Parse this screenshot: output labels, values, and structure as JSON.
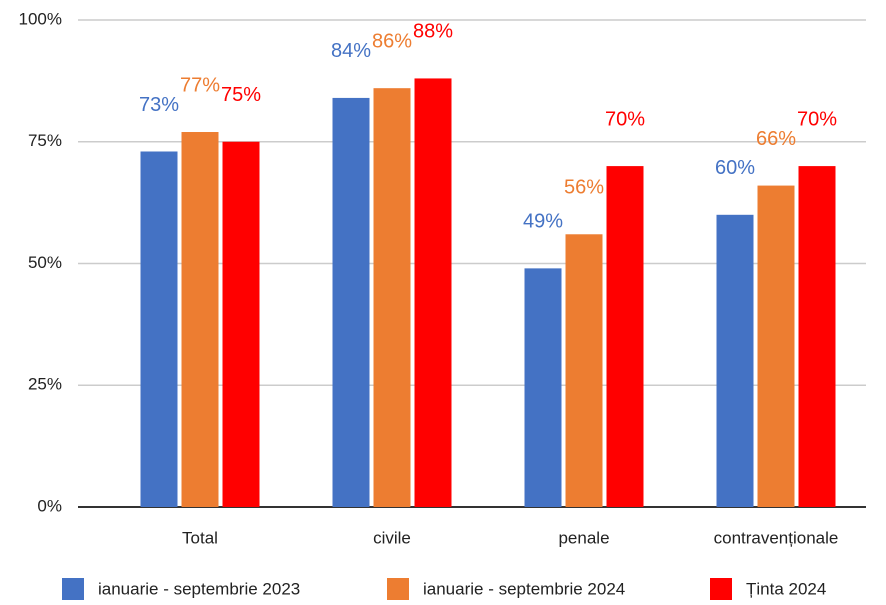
{
  "chart_data": {
    "type": "bar",
    "categories": [
      "Total",
      "civile",
      "penale",
      "contravenționale"
    ],
    "series": [
      {
        "name": "ianuarie - septembrie 2023",
        "color": "#4472c4",
        "values": [
          73,
          84,
          49,
          60
        ],
        "value_labels": [
          "73%",
          "84%",
          "49%",
          "60%"
        ]
      },
      {
        "name": "ianuarie - septembrie 2024",
        "color": "#ed7d31",
        "values": [
          77,
          86,
          56,
          66
        ],
        "value_labels": [
          "77%",
          "86%",
          "56%",
          "66%"
        ]
      },
      {
        "name": "Ținta 2024",
        "color": "#ff0000",
        "values": [
          75,
          88,
          70,
          70
        ],
        "value_labels": [
          "75%",
          "88%",
          "70%",
          "70%"
        ]
      }
    ],
    "ylim": [
      0,
      100
    ],
    "yticks": [
      {
        "value": 0,
        "label": "0%"
      },
      {
        "value": 25,
        "label": "25%"
      },
      {
        "value": 50,
        "label": "50%"
      },
      {
        "value": 75,
        "label": "75%"
      },
      {
        "value": 100,
        "label": "100%"
      }
    ],
    "grid": true,
    "legend": "bottom"
  }
}
